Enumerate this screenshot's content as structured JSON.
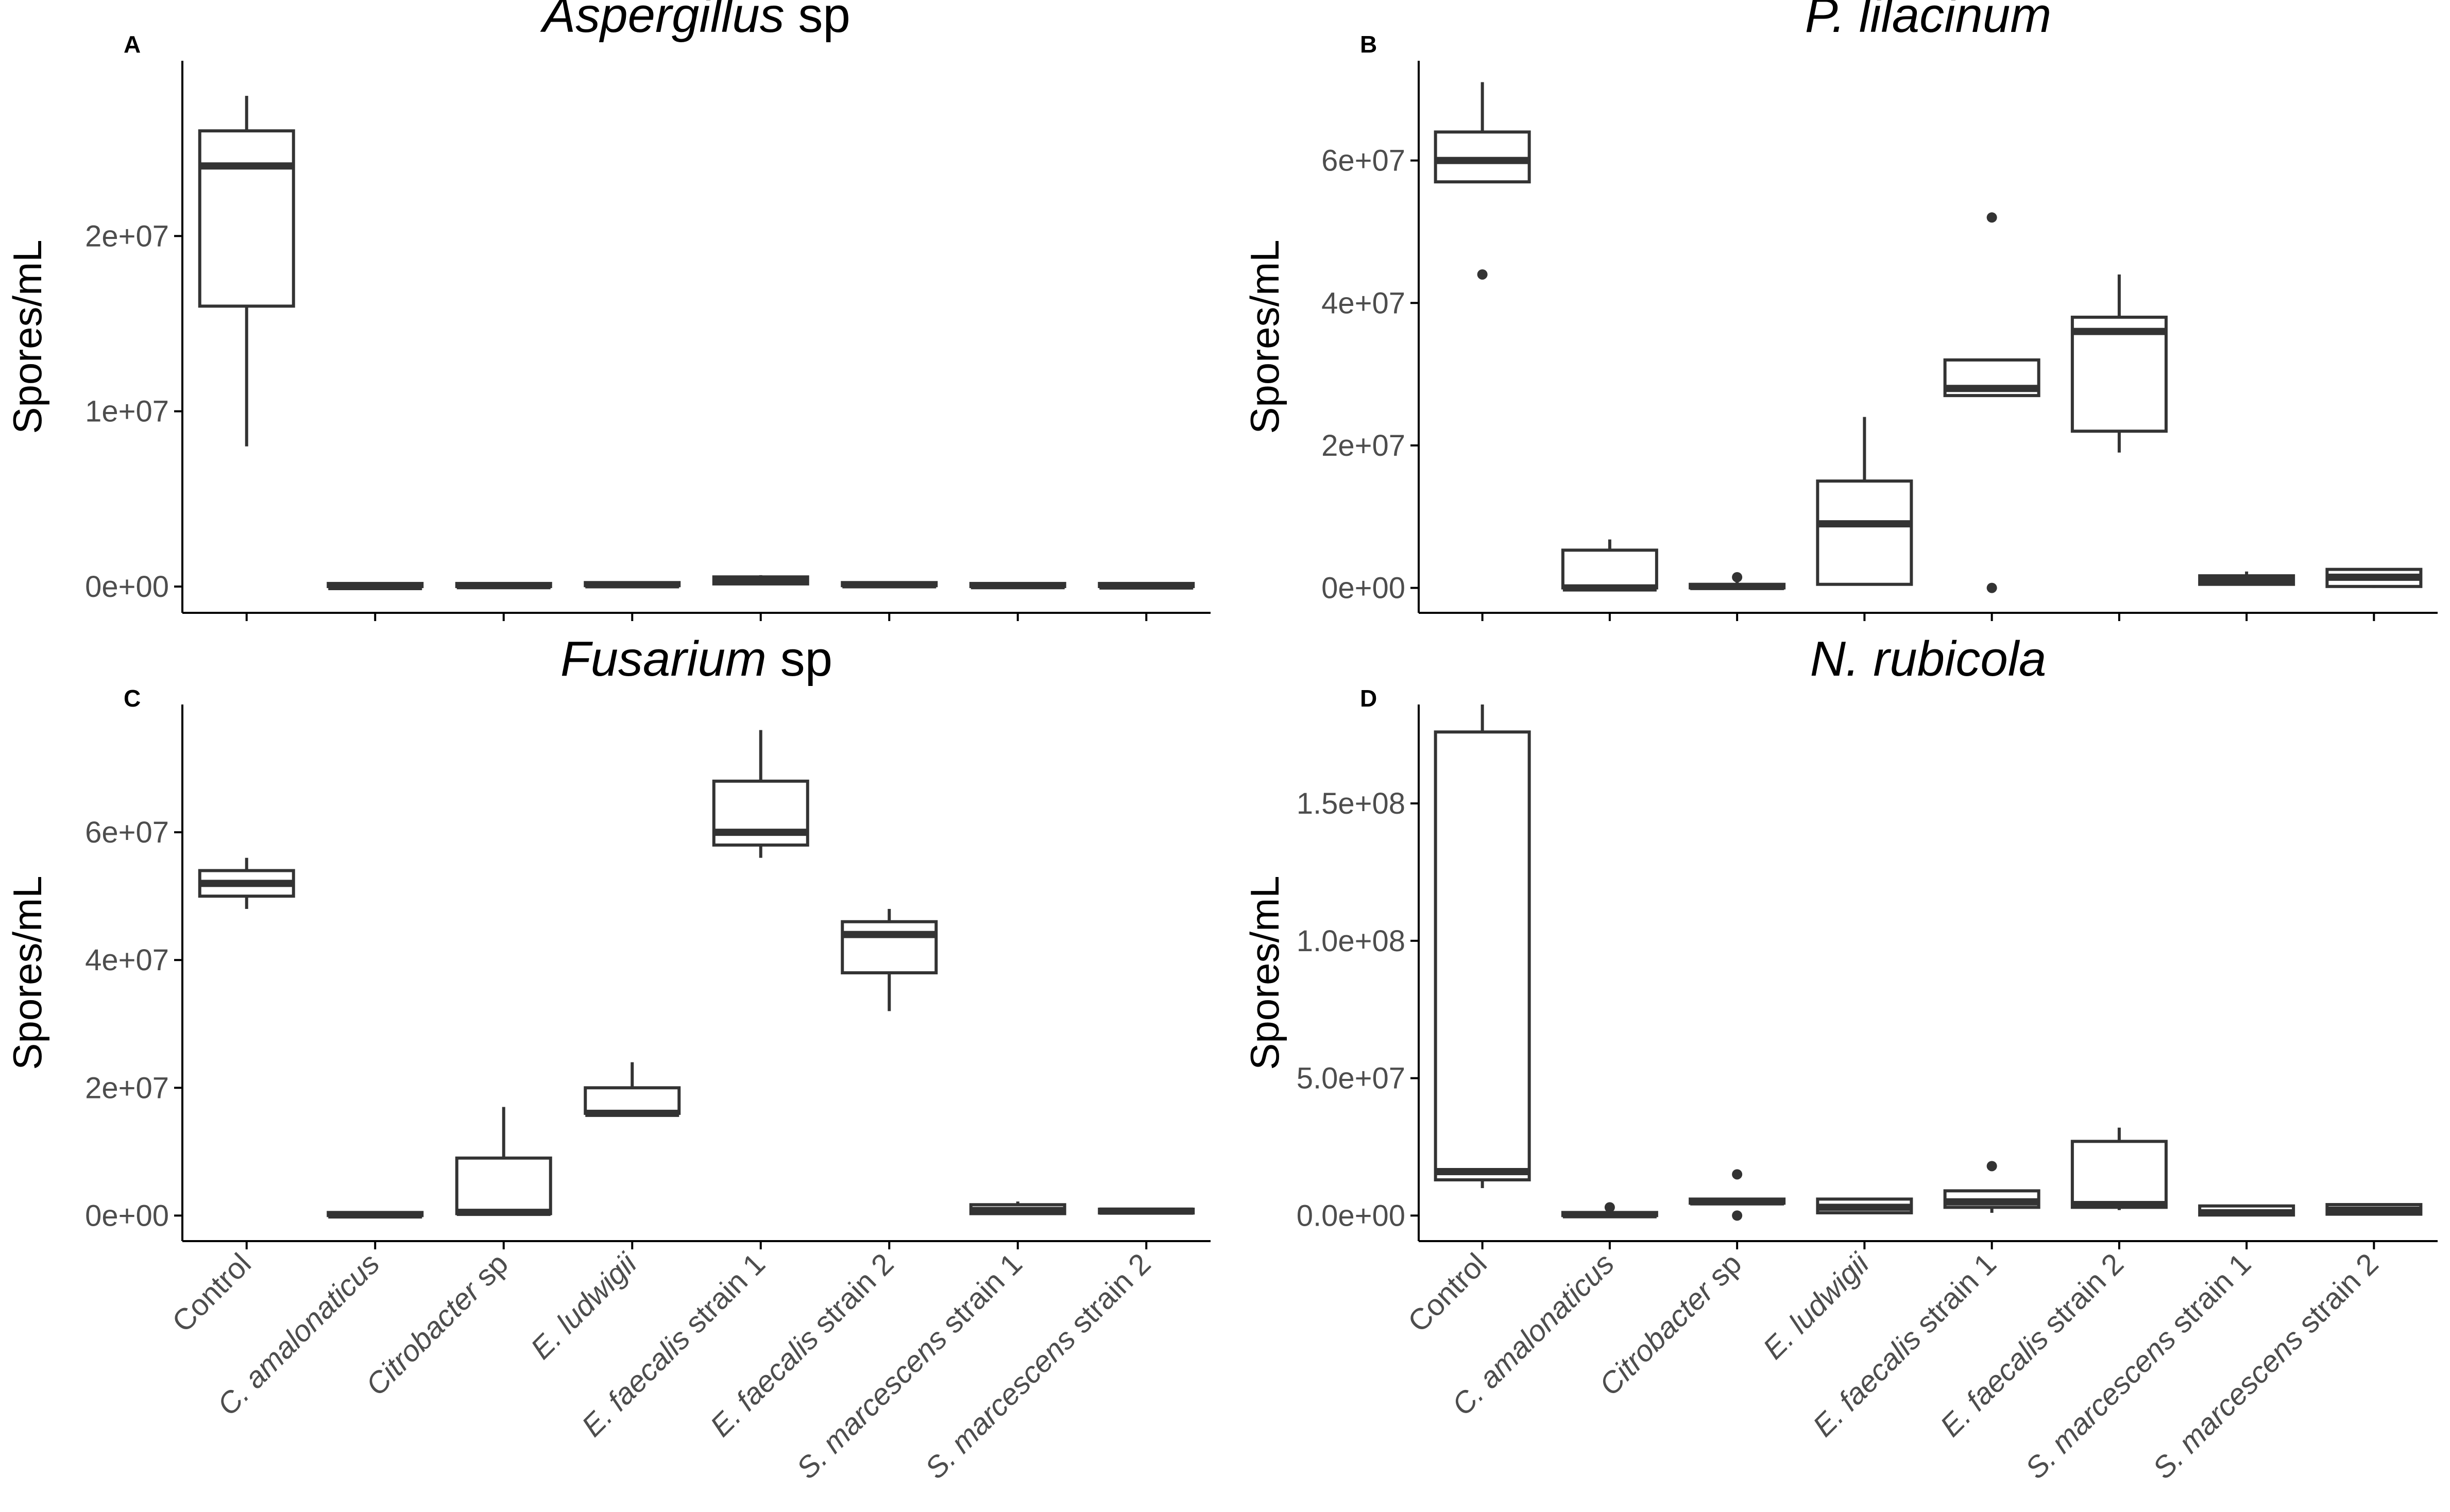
{
  "figure": {
    "categories": [
      {
        "italic": "",
        "plain": "Control"
      },
      {
        "italic": "C. amalonaticus",
        "plain": ""
      },
      {
        "italic": "Citrobacter",
        "plain": " sp"
      },
      {
        "italic": "E. ludwigii",
        "plain": ""
      },
      {
        "italic": "E. faecalis",
        "plain": " strain 1"
      },
      {
        "italic": "E. faecalis",
        "plain": " strain 2"
      },
      {
        "italic": "S. marcescens",
        "plain": " strain 1"
      },
      {
        "italic": "S. marcescens",
        "plain": " strain 2"
      }
    ],
    "ylabel": "Spores/mL"
  },
  "chart_data": [
    {
      "type": "boxplot",
      "panel_label": "A",
      "title_italic": "Aspergillus",
      "title_plain": " sp",
      "ylabel": "Spores/mL",
      "ylim": [
        -1500000,
        30000000
      ],
      "yticks": [
        0,
        10000000,
        20000000
      ],
      "ytick_labels": [
        "0e+00",
        "1e+07",
        "2e+07"
      ],
      "boxes": [
        {
          "category": "Control",
          "min": 8000000,
          "q1": 16000000,
          "median": 24000000,
          "q3": 26000000,
          "max": 28000000,
          "outliers": []
        },
        {
          "category": "C. amalonaticus",
          "min": 0,
          "q1": 0,
          "median": 0,
          "q3": 50000,
          "max": 80000,
          "outliers": []
        },
        {
          "category": "Citrobacter sp",
          "min": 0,
          "q1": 0,
          "median": 50000,
          "q3": 100000,
          "max": 150000,
          "outliers": []
        },
        {
          "category": "E. ludwigii",
          "min": 0,
          "q1": 50000,
          "median": 100000,
          "q3": 150000,
          "max": 200000,
          "outliers": []
        },
        {
          "category": "E. faecalis strain 1",
          "min": 100000,
          "q1": 150000,
          "median": 300000,
          "q3": 550000,
          "max": 650000,
          "outliers": []
        },
        {
          "category": "E. faecalis strain 2",
          "min": 0,
          "q1": 50000,
          "median": 100000,
          "q3": 150000,
          "max": 200000,
          "outliers": []
        },
        {
          "category": "S. marcescens strain 1",
          "min": 0,
          "q1": 0,
          "median": 50000,
          "q3": 80000,
          "max": 120000,
          "outliers": []
        },
        {
          "category": "S. marcescens strain 2",
          "min": 0,
          "q1": 0,
          "median": 30000,
          "q3": 60000,
          "max": 100000,
          "outliers": []
        }
      ]
    },
    {
      "type": "boxplot",
      "panel_label": "B",
      "title_italic": "P. lilacinum",
      "title_plain": "",
      "ylabel": "Spores/mL",
      "ylim": [
        -3500000,
        74000000
      ],
      "yticks": [
        0,
        20000000,
        40000000,
        60000000
      ],
      "ytick_labels": [
        "0e+00",
        "2e+07",
        "4e+07",
        "6e+07"
      ],
      "boxes": [
        {
          "category": "Control",
          "min": 57000000,
          "q1": 57000000,
          "median": 60000000,
          "q3": 64000000,
          "max": 71000000,
          "outliers": [
            44000000
          ]
        },
        {
          "category": "C. amalonaticus",
          "min": 0,
          "q1": 0,
          "median": 0,
          "q3": 5300000,
          "max": 6800000,
          "outliers": []
        },
        {
          "category": "Citrobacter sp",
          "min": 0,
          "q1": 0,
          "median": 200000,
          "q3": 500000,
          "max": 800000,
          "outliers": [
            1500000
          ]
        },
        {
          "category": "E. ludwigii",
          "min": 500000,
          "q1": 500000,
          "median": 9000000,
          "q3": 15000000,
          "max": 24000000,
          "outliers": []
        },
        {
          "category": "E. faecalis strain 1",
          "min": 27000000,
          "q1": 27000000,
          "median": 28000000,
          "q3": 32000000,
          "max": 32000000,
          "outliers": [
            52000000,
            0
          ]
        },
        {
          "category": "E. faecalis strain 2",
          "min": 19000000,
          "q1": 22000000,
          "median": 36000000,
          "q3": 38000000,
          "max": 44000000,
          "outliers": []
        },
        {
          "category": "S. marcescens strain 1",
          "min": 300000,
          "q1": 500000,
          "median": 1000000,
          "q3": 1700000,
          "max": 2300000,
          "outliers": []
        },
        {
          "category": "S. marcescens strain 2",
          "min": 0,
          "q1": 200000,
          "median": 1500000,
          "q3": 2600000,
          "max": 2600000,
          "outliers": []
        }
      ]
    },
    {
      "type": "boxplot",
      "panel_label": "C",
      "title_italic": "Fusarium",
      "title_plain": " sp",
      "ylabel": "Spores/mL",
      "ylim": [
        -4000000,
        80000000
      ],
      "yticks": [
        0,
        20000000,
        40000000,
        60000000
      ],
      "ytick_labels": [
        "0e+00",
        "2e+07",
        "4e+07",
        "6e+07"
      ],
      "boxes": [
        {
          "category": "Control",
          "min": 48000000,
          "q1": 50000000,
          "median": 52000000,
          "q3": 54000000,
          "max": 56000000,
          "outliers": []
        },
        {
          "category": "C. amalonaticus",
          "min": 0,
          "q1": 0,
          "median": 100000,
          "q3": 300000,
          "max": 500000,
          "outliers": []
        },
        {
          "category": "Citrobacter sp",
          "min": 0,
          "q1": 300000,
          "median": 500000,
          "q3": 9000000,
          "max": 17000000,
          "outliers": []
        },
        {
          "category": "E. ludwigii",
          "min": 16000000,
          "q1": 16000000,
          "median": 16000000,
          "q3": 20000000,
          "max": 24000000,
          "outliers": []
        },
        {
          "category": "E. faecalis strain 1",
          "min": 56000000,
          "q1": 58000000,
          "median": 60000000,
          "q3": 68000000,
          "max": 76000000,
          "outliers": []
        },
        {
          "category": "E. faecalis strain 2",
          "min": 32000000,
          "q1": 38000000,
          "median": 44000000,
          "q3": 46000000,
          "max": 48000000,
          "outliers": []
        },
        {
          "category": "S. marcescens strain 1",
          "min": 200000,
          "q1": 300000,
          "median": 800000,
          "q3": 1700000,
          "max": 2200000,
          "outliers": []
        },
        {
          "category": "S. marcescens strain 2",
          "min": 200000,
          "q1": 400000,
          "median": 700000,
          "q3": 1000000,
          "max": 1200000,
          "outliers": []
        }
      ]
    },
    {
      "type": "boxplot",
      "panel_label": "D",
      "title_italic": "N. rubicola",
      "title_plain": "",
      "ylabel": "Spores/mL",
      "ylim": [
        -9300000,
        186000000
      ],
      "yticks": [
        0,
        50000000,
        100000000,
        150000000
      ],
      "ytick_labels": [
        "0.0e+00",
        "5.0e+07",
        "1.0e+08",
        "1.5e+08"
      ],
      "boxes": [
        {
          "category": "Control",
          "min": 10000000,
          "q1": 13000000,
          "median": 16000000,
          "q3": 176000000,
          "max": 186000000,
          "outliers": []
        },
        {
          "category": "C. amalonaticus",
          "min": 0,
          "q1": 0,
          "median": 300000,
          "q3": 700000,
          "max": 1000000,
          "outliers": [
            3000000
          ]
        },
        {
          "category": "Citrobacter sp",
          "min": 4000000,
          "q1": 4500000,
          "median": 5000000,
          "q3": 6000000,
          "max": 6500000,
          "outliers": [
            15000000,
            0
          ]
        },
        {
          "category": "E. ludwigii",
          "min": 500000,
          "q1": 1000000,
          "median": 3000000,
          "q3": 6000000,
          "max": 6500000,
          "outliers": []
        },
        {
          "category": "E. faecalis strain 1",
          "min": 1000000,
          "q1": 3000000,
          "median": 5000000,
          "q3": 9000000,
          "max": 9500000,
          "outliers": [
            18000000
          ]
        },
        {
          "category": "E. faecalis strain 2",
          "min": 2000000,
          "q1": 3000000,
          "median": 4000000,
          "q3": 27000000,
          "max": 32000000,
          "outliers": []
        },
        {
          "category": "S. marcescens strain 1",
          "min": 0,
          "q1": 200000,
          "median": 1000000,
          "q3": 3500000,
          "max": 4000000,
          "outliers": []
        },
        {
          "category": "S. marcescens strain 2",
          "min": 0,
          "q1": 500000,
          "median": 2000000,
          "q3": 4000000,
          "max": 4500000,
          "outliers": []
        }
      ]
    }
  ]
}
